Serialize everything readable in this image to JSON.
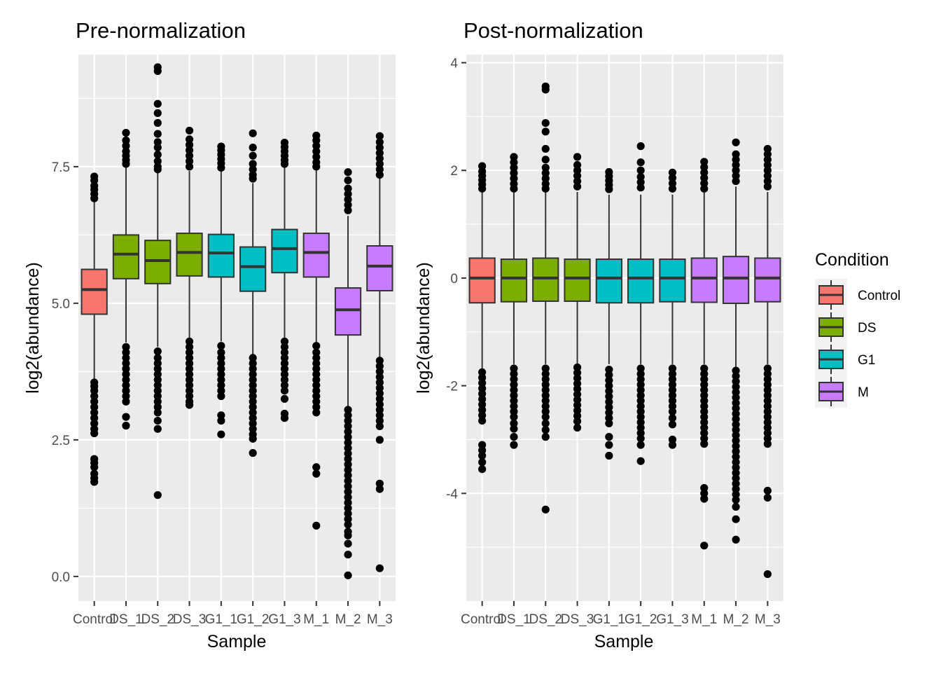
{
  "chart_data": [
    {
      "type": "box",
      "title": "Pre-normalization",
      "xlabel": "Sample",
      "ylabel": "log2(abundance)",
      "ylim": [
        -0.45,
        9.55
      ],
      "yticks": [
        0.0,
        2.5,
        5.0,
        7.5
      ],
      "yticklabels": [
        "0.0",
        "2.5",
        "5.0",
        "7.5"
      ],
      "grid": true,
      "categories": [
        "Control",
        "DS_1",
        "DS_2",
        "DS_3",
        "G1_1",
        "G1_2",
        "G1_3",
        "M_1",
        "M_2",
        "M_3"
      ],
      "series": [
        {
          "sample": "Control",
          "condition": "Control",
          "q1": 4.8,
          "median": 5.25,
          "q3": 5.62,
          "whisker_low": 3.6,
          "whisker_high": 6.85,
          "outliers": [
            7.32,
            7.25,
            7.15,
            7.08,
            7.0,
            6.92,
            3.55,
            3.48,
            3.4,
            3.3,
            3.2,
            3.1,
            3.0,
            2.9,
            2.8,
            2.7,
            2.62,
            2.15,
            2.08,
            2.0,
            1.88,
            1.8,
            1.73
          ]
        },
        {
          "sample": "DS_1",
          "condition": "DS",
          "q1": 5.45,
          "median": 5.9,
          "q3": 6.25,
          "whisker_low": 4.28,
          "whisker_high": 7.5,
          "outliers": [
            8.12,
            7.98,
            7.88,
            7.78,
            7.7,
            7.62,
            7.55,
            4.2,
            4.1,
            4.0,
            3.9,
            3.8,
            3.7,
            3.6,
            3.5,
            3.4,
            3.3,
            3.2,
            2.92,
            2.76
          ]
        },
        {
          "sample": "DS_2",
          "condition": "DS",
          "q1": 5.36,
          "median": 5.78,
          "q3": 6.15,
          "whisker_low": 4.2,
          "whisker_high": 7.4,
          "outliers": [
            9.32,
            9.25,
            8.65,
            8.48,
            8.3,
            8.1,
            7.95,
            7.85,
            7.72,
            7.6,
            7.5,
            7.45,
            4.12,
            4.0,
            3.9,
            3.8,
            3.7,
            3.6,
            3.5,
            3.4,
            3.3,
            3.2,
            3.1,
            3.0,
            2.85,
            2.7,
            1.49
          ]
        },
        {
          "sample": "DS_3",
          "condition": "DS",
          "q1": 5.5,
          "median": 5.93,
          "q3": 6.28,
          "whisker_low": 4.36,
          "whisker_high": 7.42,
          "outliers": [
            8.16,
            8.0,
            7.9,
            7.8,
            7.7,
            7.6,
            7.5,
            4.3,
            4.2,
            4.1,
            4.0,
            3.9,
            3.8,
            3.7,
            3.6,
            3.5,
            3.4,
            3.3,
            3.2,
            3.14
          ]
        },
        {
          "sample": "G1_1",
          "condition": "G1",
          "q1": 5.48,
          "median": 5.92,
          "q3": 6.26,
          "whisker_low": 4.3,
          "whisker_high": 7.42,
          "outliers": [
            7.87,
            7.8,
            7.72,
            7.64,
            7.56,
            7.48,
            4.22,
            4.1,
            4.0,
            3.9,
            3.8,
            3.7,
            3.6,
            3.5,
            3.4,
            3.3,
            2.95,
            2.85,
            2.6
          ]
        },
        {
          "sample": "G1_2",
          "condition": "G1",
          "q1": 5.22,
          "median": 5.67,
          "q3": 6.03,
          "whisker_low": 4.05,
          "whisker_high": 7.2,
          "outliers": [
            8.11,
            7.85,
            7.7,
            7.55,
            7.45,
            7.35,
            7.28,
            4.0,
            3.9,
            3.8,
            3.7,
            3.6,
            3.5,
            3.4,
            3.3,
            3.2,
            3.1,
            3.0,
            2.9,
            2.8,
            2.7,
            2.6,
            2.52,
            2.26
          ]
        },
        {
          "sample": "G1_3",
          "condition": "G1",
          "q1": 5.56,
          "median": 6.0,
          "q3": 6.35,
          "whisker_low": 4.36,
          "whisker_high": 7.5,
          "outliers": [
            7.94,
            7.86,
            7.78,
            7.7,
            7.62,
            7.55,
            4.3,
            4.2,
            4.1,
            4.0,
            3.9,
            3.8,
            3.7,
            3.6,
            3.5,
            3.4,
            3.25,
            2.98,
            2.9
          ]
        },
        {
          "sample": "M_1",
          "condition": "M",
          "q1": 5.48,
          "median": 5.93,
          "q3": 6.28,
          "whisker_low": 4.28,
          "whisker_high": 7.45,
          "outliers": [
            8.07,
            7.98,
            7.88,
            7.78,
            7.68,
            7.58,
            7.5,
            4.22,
            4.1,
            4.0,
            3.9,
            3.8,
            3.7,
            3.6,
            3.5,
            3.4,
            3.3,
            3.2,
            3.1,
            3.0,
            2.0,
            1.88,
            0.93
          ]
        },
        {
          "sample": "M_2",
          "condition": "M",
          "q1": 4.42,
          "median": 4.88,
          "q3": 5.28,
          "whisker_low": 3.1,
          "whisker_high": 6.6,
          "outliers": [
            7.4,
            7.25,
            7.1,
            7.0,
            6.9,
            6.8,
            6.7,
            3.05,
            2.95,
            2.85,
            2.75,
            2.65,
            2.55,
            2.45,
            2.35,
            2.25,
            2.15,
            2.05,
            1.95,
            1.85,
            1.75,
            1.65,
            1.55,
            1.45,
            1.35,
            1.25,
            1.15,
            1.05,
            0.95,
            0.82,
            0.75,
            0.6,
            0.4,
            0.02
          ]
        },
        {
          "sample": "M_3",
          "condition": "M",
          "q1": 5.23,
          "median": 5.68,
          "q3": 6.05,
          "whisker_low": 4.0,
          "whisker_high": 7.28,
          "outliers": [
            8.06,
            7.95,
            7.85,
            7.75,
            7.65,
            7.55,
            7.45,
            7.35,
            3.95,
            3.85,
            3.75,
            3.65,
            3.55,
            3.45,
            3.35,
            3.25,
            3.15,
            3.05,
            2.95,
            2.85,
            2.75,
            2.5,
            1.7,
            1.6,
            0.15
          ]
        }
      ]
    },
    {
      "type": "box",
      "title": "Post-normalization",
      "xlabel": "Sample",
      "ylabel": "log2(abundance)",
      "ylim": [
        -6.0,
        4.15
      ],
      "yticks": [
        -4,
        -2,
        0,
        2,
        4
      ],
      "yticklabels": [
        "-4",
        "-2",
        "0",
        "2",
        "4"
      ],
      "grid": true,
      "categories": [
        "Control",
        "DS_1",
        "DS_2",
        "DS_3",
        "G1_1",
        "G1_2",
        "G1_3",
        "M_1",
        "M_2",
        "M_3"
      ],
      "series": [
        {
          "sample": "Control",
          "condition": "Control",
          "q1": -0.46,
          "median": 0.0,
          "q3": 0.37,
          "whisker_low": -1.68,
          "whisker_high": 1.6,
          "outliers": [
            2.08,
            1.98,
            1.9,
            1.82,
            1.74,
            1.66,
            -1.75,
            -1.85,
            -1.95,
            -2.05,
            -2.15,
            -2.25,
            -2.35,
            -2.45,
            -2.55,
            -2.65,
            -3.1,
            -3.2,
            -3.3,
            -3.42,
            -3.55
          ]
        },
        {
          "sample": "DS_1",
          "condition": "DS",
          "q1": -0.44,
          "median": 0.0,
          "q3": 0.35,
          "whisker_low": -1.6,
          "whisker_high": 1.6,
          "outliers": [
            2.25,
            2.15,
            2.05,
            1.95,
            1.85,
            1.75,
            1.66,
            -1.68,
            -1.78,
            -1.88,
            -1.98,
            -2.08,
            -2.18,
            -2.28,
            -2.38,
            -2.48,
            -2.58,
            -2.7,
            -2.8,
            -2.95,
            -3.1
          ]
        },
        {
          "sample": "DS_2",
          "condition": "DS",
          "q1": -0.43,
          "median": 0.0,
          "q3": 0.37,
          "whisker_low": -1.6,
          "whisker_high": 1.6,
          "outliers": [
            3.56,
            3.5,
            2.88,
            2.72,
            2.4,
            2.2,
            2.05,
            1.95,
            1.85,
            1.75,
            1.66,
            -1.68,
            -1.78,
            -1.88,
            -1.98,
            -2.08,
            -2.18,
            -2.28,
            -2.38,
            -2.48,
            -2.58,
            -2.7,
            -2.82,
            -2.95,
            -4.3
          ]
        },
        {
          "sample": "DS_3",
          "condition": "DS",
          "q1": -0.43,
          "median": 0.0,
          "q3": 0.35,
          "whisker_low": -1.6,
          "whisker_high": 1.6,
          "outliers": [
            2.25,
            2.1,
            2.0,
            1.9,
            1.8,
            1.7,
            -1.66,
            -1.76,
            -1.86,
            -1.96,
            -2.06,
            -2.16,
            -2.26,
            -2.36,
            -2.46,
            -2.56,
            -2.66,
            -2.78
          ]
        },
        {
          "sample": "G1_1",
          "condition": "G1",
          "q1": -0.46,
          "median": 0.0,
          "q3": 0.35,
          "whisker_low": -1.6,
          "whisker_high": 1.55,
          "outliers": [
            1.97,
            1.89,
            1.81,
            1.73,
            1.65,
            -1.7,
            -1.8,
            -1.9,
            -2.0,
            -2.1,
            -2.2,
            -2.3,
            -2.4,
            -2.5,
            -2.6,
            -2.7,
            -2.95,
            -3.1,
            -3.3
          ]
        },
        {
          "sample": "G1_2",
          "condition": "G1",
          "q1": -0.46,
          "median": 0.0,
          "q3": 0.35,
          "whisker_low": -1.6,
          "whisker_high": 1.55,
          "outliers": [
            2.45,
            2.15,
            2.0,
            1.88,
            1.78,
            1.68,
            -1.68,
            -1.78,
            -1.88,
            -1.98,
            -2.08,
            -2.18,
            -2.28,
            -2.38,
            -2.48,
            -2.58,
            -2.68,
            -2.78,
            -2.88,
            -2.98,
            -3.1,
            -3.4
          ]
        },
        {
          "sample": "G1_3",
          "condition": "G1",
          "q1": -0.44,
          "median": 0.0,
          "q3": 0.35,
          "whisker_low": -1.6,
          "whisker_high": 1.55,
          "outliers": [
            1.96,
            1.86,
            1.76,
            1.66,
            -1.68,
            -1.78,
            -1.88,
            -1.98,
            -2.08,
            -2.18,
            -2.28,
            -2.38,
            -2.48,
            -2.6,
            -2.72,
            -3.0,
            -3.1
          ]
        },
        {
          "sample": "M_1",
          "condition": "M",
          "q1": -0.45,
          "median": 0.0,
          "q3": 0.37,
          "whisker_low": -1.6,
          "whisker_high": 1.6,
          "outliers": [
            2.16,
            2.06,
            1.96,
            1.86,
            1.76,
            1.66,
            -1.68,
            -1.78,
            -1.88,
            -1.98,
            -2.08,
            -2.18,
            -2.28,
            -2.38,
            -2.48,
            -2.58,
            -2.68,
            -2.78,
            -2.88,
            -2.98,
            -3.08,
            -3.9,
            -4.0,
            -4.1,
            -4.97
          ]
        },
        {
          "sample": "M_2",
          "condition": "M",
          "q1": -0.47,
          "median": 0.0,
          "q3": 0.4,
          "whisker_low": -1.65,
          "whisker_high": 1.7,
          "outliers": [
            2.52,
            2.3,
            2.2,
            2.1,
            2.0,
            1.9,
            1.8,
            -1.72,
            -1.82,
            -1.92,
            -2.02,
            -2.12,
            -2.22,
            -2.32,
            -2.42,
            -2.52,
            -2.62,
            -2.72,
            -2.82,
            -2.92,
            -3.02,
            -3.12,
            -3.22,
            -3.32,
            -3.42,
            -3.52,
            -3.62,
            -3.72,
            -3.82,
            -3.92,
            -4.02,
            -4.12,
            -4.25,
            -4.48,
            -4.86
          ]
        },
        {
          "sample": "M_3",
          "condition": "M",
          "q1": -0.44,
          "median": 0.0,
          "q3": 0.37,
          "whisker_low": -1.6,
          "whisker_high": 1.6,
          "outliers": [
            2.4,
            2.3,
            2.2,
            2.1,
            2.0,
            1.9,
            1.8,
            1.7,
            -1.68,
            -1.78,
            -1.88,
            -1.98,
            -2.08,
            -2.18,
            -2.28,
            -2.38,
            -2.48,
            -2.58,
            -2.68,
            -2.78,
            -2.88,
            -2.98,
            -3.08,
            -3.95,
            -4.08,
            -5.5
          ]
        }
      ]
    }
  ],
  "legend": {
    "title": "Condition",
    "position": "right",
    "items": [
      {
        "label": "Control",
        "color": "#F8766D"
      },
      {
        "label": "DS",
        "color": "#7CAE00"
      },
      {
        "label": "G1",
        "color": "#00BFC4"
      },
      {
        "label": "M",
        "color": "#C77CFF"
      }
    ]
  },
  "colors": {
    "panel_bg": "#EBEBEB",
    "grid_major": "#FFFFFF",
    "box_line": "#333333",
    "point": "#000000"
  }
}
